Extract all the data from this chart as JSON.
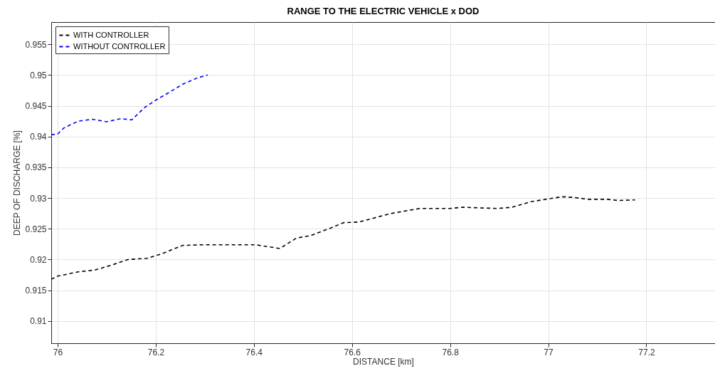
{
  "chart_data": {
    "type": "line",
    "title": "RANGE TO THE ELECTRIC VEHICLE x DOD",
    "xlabel": "DISTANCE [km]",
    "ylabel": "DEEP OF DISCHARGE [%]",
    "xlim": [
      75.987,
      77.34
    ],
    "ylim": [
      0.9064,
      0.9586
    ],
    "xticks": [
      76,
      76.2,
      76.4,
      76.6,
      76.8,
      77,
      77.2
    ],
    "yticks": [
      0.91,
      0.915,
      0.92,
      0.925,
      0.93,
      0.935,
      0.94,
      0.945,
      0.95,
      0.955
    ],
    "grid": true,
    "legend": "top left",
    "line_style": "dashed",
    "series": [
      {
        "name": "WITH CONTROLLER",
        "color": "#000000",
        "x": [
          75.987,
          76.0,
          76.042,
          76.076,
          76.11,
          76.143,
          76.182,
          76.211,
          76.255,
          76.293,
          76.366,
          76.404,
          76.453,
          76.487,
          76.516,
          76.559,
          76.583,
          76.614,
          76.68,
          76.738,
          76.8,
          76.825,
          76.897,
          76.926,
          76.965,
          77.003,
          77.028,
          77.052,
          77.081,
          77.119,
          77.143,
          77.177
        ],
        "values": [
          0.9168,
          0.9173,
          0.918,
          0.9183,
          0.9191,
          0.92,
          0.9202,
          0.9209,
          0.9223,
          0.9224,
          0.9224,
          0.9224,
          0.9218,
          0.9235,
          0.9239,
          0.9252,
          0.926,
          0.9261,
          0.9275,
          0.9283,
          0.9283,
          0.9285,
          0.9283,
          0.9285,
          0.9294,
          0.9299,
          0.9302,
          0.9301,
          0.9298,
          0.9298,
          0.9296,
          0.9297
        ]
      },
      {
        "name": "WITHOUT CONTROLLER",
        "color": "#0000ff",
        "x": [
          75.987,
          76.0,
          76.013,
          76.042,
          76.071,
          76.1,
          76.129,
          76.151,
          76.177,
          76.2,
          76.23,
          76.255,
          76.284,
          76.306
        ],
        "values": [
          0.9403,
          0.9404,
          0.9414,
          0.9425,
          0.9428,
          0.9424,
          0.9429,
          0.9427,
          0.9447,
          0.9459,
          0.9473,
          0.9485,
          0.9495,
          0.95
        ]
      }
    ]
  }
}
